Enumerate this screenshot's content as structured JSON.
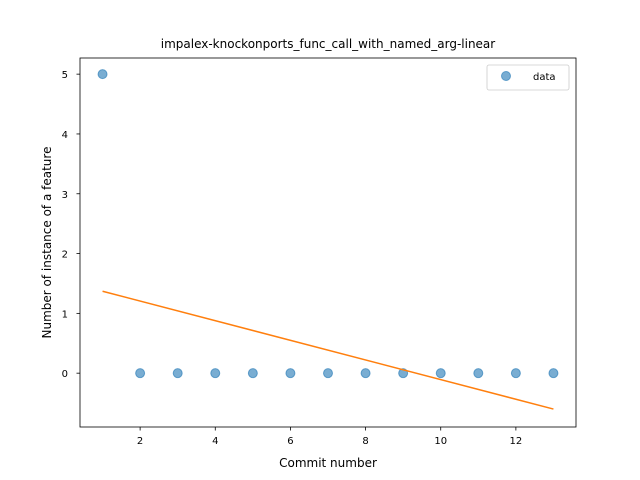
{
  "chart_data": {
    "type": "scatter",
    "title": "impalex-knockonports_func_call_with_named_arg-linear",
    "xlabel": "Commit number",
    "ylabel": "Number of instance of a feature",
    "xlim": [
      0.4,
      13.6
    ],
    "ylim": [
      -0.9,
      5.27
    ],
    "xticks": [
      2,
      4,
      6,
      8,
      10,
      12
    ],
    "yticks": [
      0,
      1,
      2,
      3,
      4,
      5
    ],
    "grid": false,
    "legend_position": "top-right",
    "series": [
      {
        "name": "data",
        "kind": "scatter",
        "color": "#1f77b4",
        "x": [
          1,
          2,
          3,
          4,
          5,
          6,
          7,
          8,
          9,
          10,
          11,
          12,
          13
        ],
        "y": [
          5,
          0,
          0,
          0,
          0,
          0,
          0,
          0,
          0,
          0,
          0,
          0,
          0
        ]
      },
      {
        "kind": "line",
        "color": "#ff7f0e",
        "x": [
          1,
          13
        ],
        "y": [
          1.37,
          -0.6
        ]
      }
    ]
  }
}
